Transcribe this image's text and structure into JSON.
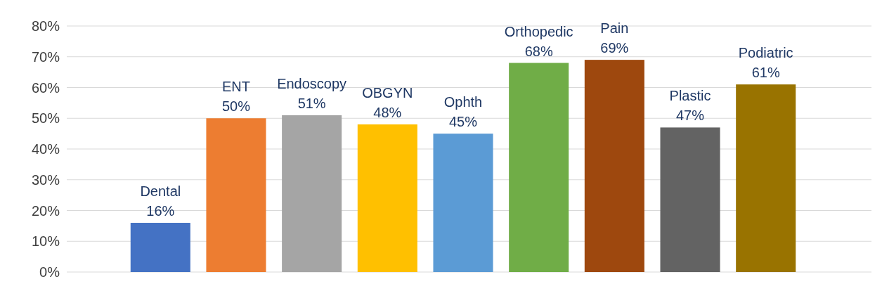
{
  "chart_data": {
    "type": "bar",
    "categories": [
      "Dental",
      "ENT",
      "Endoscopy",
      "OBGYN",
      "Ophth",
      "Orthopedic",
      "Pain",
      "Plastic",
      "Podiatric"
    ],
    "values": [
      16,
      50,
      51,
      48,
      45,
      68,
      69,
      47,
      61
    ],
    "colors": [
      "#4472c4",
      "#ed7d31",
      "#a5a5a5",
      "#ffc000",
      "#5b9bd5",
      "#70ad47",
      "#9e480e",
      "#636363",
      "#997300"
    ],
    "value_labels": [
      "16%",
      "50%",
      "51%",
      "48%",
      "45%",
      "68%",
      "69%",
      "47%",
      "61%"
    ],
    "ylim": [
      0,
      80
    ],
    "yticks": [
      {
        "value": 0,
        "label": "0%"
      },
      {
        "value": 10,
        "label": "10%"
      },
      {
        "value": 20,
        "label": "20%"
      },
      {
        "value": 30,
        "label": "30%"
      },
      {
        "value": 40,
        "label": "40%"
      },
      {
        "value": 50,
        "label": "50%"
      },
      {
        "value": 60,
        "label": "60%"
      },
      {
        "value": 70,
        "label": "70%"
      },
      {
        "value": 80,
        "label": "80%"
      }
    ],
    "grid": "y",
    "tick_labels": "y"
  }
}
